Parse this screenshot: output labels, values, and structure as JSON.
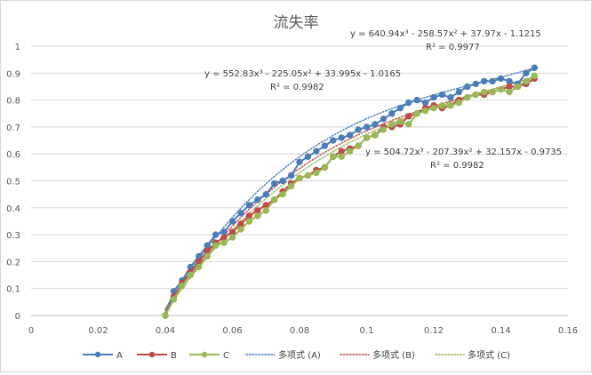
{
  "chart_data": {
    "type": "scatter",
    "title": "流失率",
    "xlabel": "",
    "ylabel": "",
    "xlim": [
      0,
      0.16
    ],
    "ylim": [
      0,
      1
    ],
    "xticks": [
      "0",
      "0.02",
      "0.04",
      "0.06",
      "0.08",
      "0.1",
      "0.12",
      "0.14",
      "0.16"
    ],
    "yticks": [
      "0",
      "0.1",
      "0.2",
      "0.3",
      "0.4",
      "0.5",
      "0.6",
      "0.7",
      "0.8",
      "0.9",
      "1"
    ],
    "grid": "horizontal",
    "legend_position": "bottom",
    "series": [
      {
        "name": "A",
        "color": "#4a7ebb",
        "x": [
          0.04,
          0.0425,
          0.045,
          0.0475,
          0.05,
          0.0525,
          0.055,
          0.0575,
          0.06,
          0.0625,
          0.065,
          0.0675,
          0.07,
          0.0725,
          0.075,
          0.0775,
          0.08,
          0.0825,
          0.085,
          0.0875,
          0.09,
          0.0925,
          0.095,
          0.0975,
          0.1,
          0.1025,
          0.105,
          0.1075,
          0.11,
          0.1125,
          0.115,
          0.1175,
          0.12,
          0.1225,
          0.125,
          0.1275,
          0.13,
          0.1325,
          0.135,
          0.1375,
          0.14,
          0.1425,
          0.145,
          0.1475,
          0.15
        ],
        "y": [
          0.0,
          0.09,
          0.13,
          0.18,
          0.22,
          0.26,
          0.3,
          0.31,
          0.35,
          0.38,
          0.41,
          0.43,
          0.45,
          0.49,
          0.5,
          0.52,
          0.57,
          0.59,
          0.61,
          0.63,
          0.65,
          0.66,
          0.67,
          0.69,
          0.7,
          0.71,
          0.73,
          0.75,
          0.77,
          0.79,
          0.8,
          0.79,
          0.81,
          0.82,
          0.81,
          0.83,
          0.85,
          0.86,
          0.87,
          0.87,
          0.88,
          0.87,
          0.86,
          0.9,
          0.92
        ]
      },
      {
        "name": "B",
        "color": "#be4b48",
        "x": [
          0.04,
          0.0425,
          0.045,
          0.0475,
          0.05,
          0.0525,
          0.055,
          0.0575,
          0.06,
          0.0625,
          0.065,
          0.0675,
          0.07,
          0.0725,
          0.075,
          0.0775,
          0.08,
          0.0825,
          0.085,
          0.0875,
          0.09,
          0.0925,
          0.095,
          0.0975,
          0.1,
          0.1025,
          0.105,
          0.1075,
          0.11,
          0.1125,
          0.115,
          0.1175,
          0.12,
          0.1225,
          0.125,
          0.1275,
          0.13,
          0.1325,
          0.135,
          0.1375,
          0.14,
          0.1425,
          0.145,
          0.1475,
          0.15
        ],
        "y": [
          0.0,
          0.07,
          0.12,
          0.16,
          0.2,
          0.24,
          0.27,
          0.29,
          0.31,
          0.34,
          0.37,
          0.39,
          0.41,
          0.43,
          0.46,
          0.49,
          0.51,
          0.52,
          0.54,
          0.55,
          0.59,
          0.61,
          0.62,
          0.63,
          0.66,
          0.67,
          0.7,
          0.7,
          0.71,
          0.74,
          0.75,
          0.77,
          0.78,
          0.77,
          0.78,
          0.8,
          0.81,
          0.82,
          0.82,
          0.83,
          0.84,
          0.85,
          0.85,
          0.86,
          0.88
        ]
      },
      {
        "name": "C",
        "color": "#98b954",
        "x": [
          0.04,
          0.0425,
          0.045,
          0.0475,
          0.05,
          0.0525,
          0.055,
          0.0575,
          0.06,
          0.0625,
          0.065,
          0.0675,
          0.07,
          0.0725,
          0.075,
          0.0775,
          0.08,
          0.0825,
          0.085,
          0.0875,
          0.09,
          0.0925,
          0.095,
          0.0975,
          0.1,
          0.1025,
          0.105,
          0.1075,
          0.11,
          0.1125,
          0.115,
          0.1175,
          0.12,
          0.1225,
          0.125,
          0.1275,
          0.13,
          0.1325,
          0.135,
          0.1375,
          0.14,
          0.1425,
          0.145,
          0.1475,
          0.15
        ],
        "y": [
          0.0,
          0.06,
          0.11,
          0.15,
          0.18,
          0.22,
          0.26,
          0.27,
          0.29,
          0.32,
          0.35,
          0.37,
          0.39,
          0.43,
          0.45,
          0.48,
          0.51,
          0.52,
          0.53,
          0.55,
          0.59,
          0.59,
          0.61,
          0.63,
          0.66,
          0.67,
          0.69,
          0.71,
          0.72,
          0.71,
          0.75,
          0.76,
          0.77,
          0.78,
          0.78,
          0.79,
          0.81,
          0.82,
          0.83,
          0.83,
          0.84,
          0.83,
          0.85,
          0.87,
          0.89
        ]
      }
    ],
    "trendlines": [
      {
        "name": "多项式 (A)",
        "series": "A",
        "color": "#4a7ebb",
        "type": "polynomial",
        "order": 3,
        "coefficients": [
          640.94,
          -258.57,
          37.97,
          -1.1215
        ],
        "equation": "y = 640.94x³ - 258.57x² + 37.97x - 1.1215",
        "r2": "R² = 0.9977"
      },
      {
        "name": "多项式 (B)",
        "series": "B",
        "color": "#be4b48",
        "type": "polynomial",
        "order": 3,
        "coefficients": [
          552.83,
          -225.05,
          33.995,
          -1.0165
        ],
        "equation": "y = 552.83x³ - 225.05x² + 33.995x - 1.0165",
        "r2": "R² = 0.9982"
      },
      {
        "name": "多项式 (C)",
        "series": "C",
        "color": "#98b954",
        "type": "polynomial",
        "order": 3,
        "coefficients": [
          504.72,
          -207.39,
          32.157,
          -0.9735
        ],
        "equation": "y = 504.72x³ - 207.39x² + 32.157x - 0.9735",
        "r2": "R² = 0.9982"
      }
    ]
  }
}
